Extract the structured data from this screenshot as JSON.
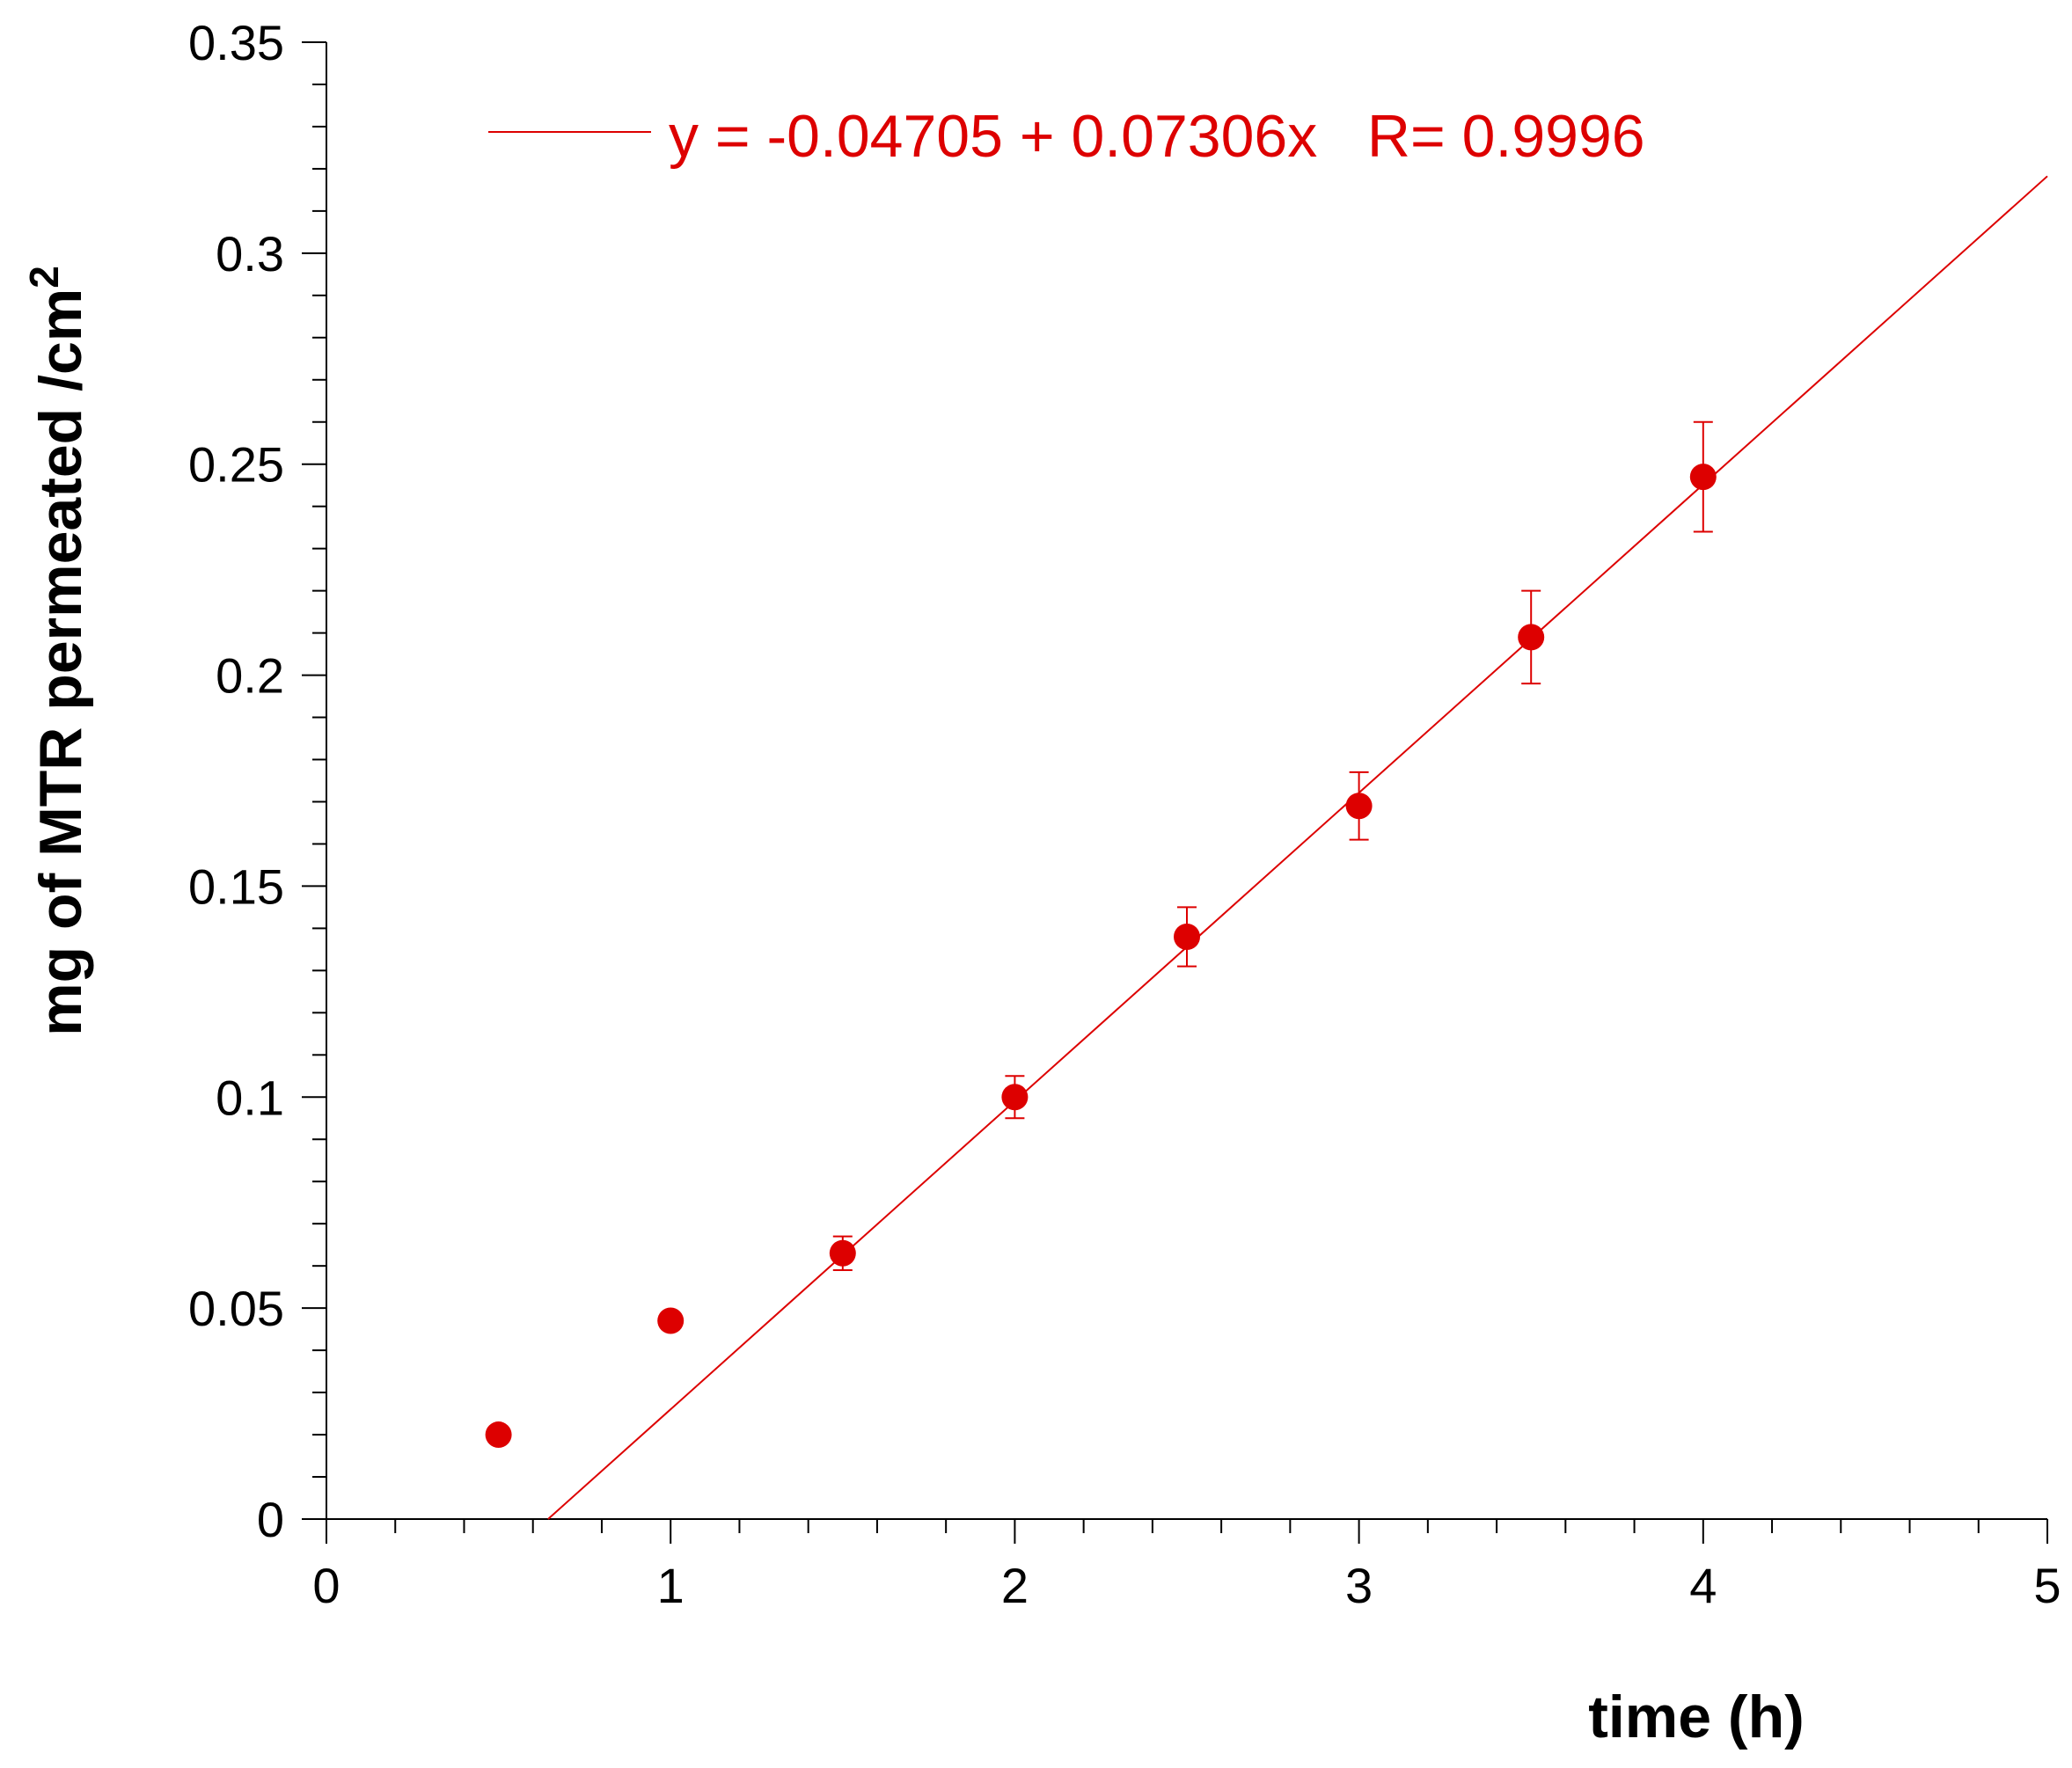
{
  "chart_data": {
    "type": "scatter",
    "title": "",
    "xlabel": "time (h)",
    "ylabel": "mg of MTR permeated /cm",
    "ylabel_superscript": "2",
    "xlim": [
      0,
      5
    ],
    "ylim": [
      0,
      0.35
    ],
    "x_ticks": [
      "0",
      "1",
      "2",
      "3",
      "4",
      "5"
    ],
    "y_ticks": [
      "0",
      "0.05",
      "0.1",
      "0.15",
      "0.2",
      "0.25",
      "0.3",
      "0.35"
    ],
    "x_tick_values": [
      0,
      1,
      2,
      3,
      4,
      5
    ],
    "y_tick_values": [
      0,
      0.05,
      0.1,
      0.15,
      0.2,
      0.25,
      0.3,
      0.35
    ],
    "grid": false,
    "legend_position": "top",
    "series": [
      {
        "color": "#dd0000",
        "points": [
          {
            "x": 0.5,
            "y": 0.02,
            "err": 0
          },
          {
            "x": 1.0,
            "y": 0.047,
            "err": 0
          },
          {
            "x": 1.5,
            "y": 0.063,
            "err": 0.004
          },
          {
            "x": 2.0,
            "y": 0.1,
            "err": 0.005
          },
          {
            "x": 2.5,
            "y": 0.138,
            "err": 0.007
          },
          {
            "x": 3.0,
            "y": 0.169,
            "err": 0.008
          },
          {
            "x": 3.5,
            "y": 0.209,
            "err": 0.011
          },
          {
            "x": 4.0,
            "y": 0.247,
            "err": 0.013
          }
        ]
      }
    ],
    "fit_line": {
      "intercept": -0.04705,
      "slope": 0.07306,
      "x_range": [
        0.644,
        5.0
      ],
      "color": "#dd0000",
      "label": "y = -0.04705 + 0.07306x   R= 0.9996"
    }
  }
}
